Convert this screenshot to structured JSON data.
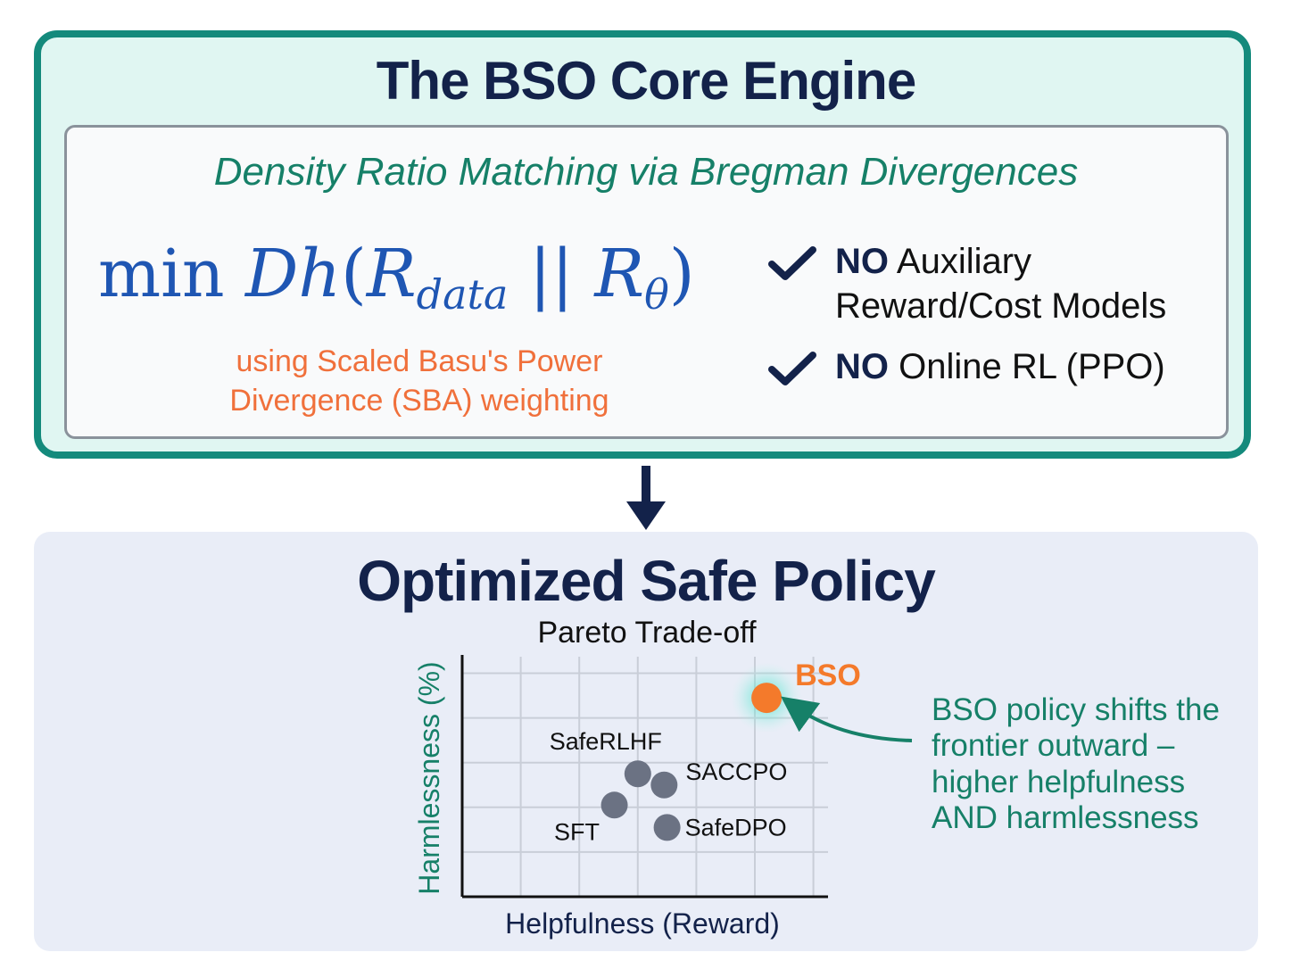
{
  "engine": {
    "title": "The BSO Core Engine",
    "subtitle": "Density Ratio Matching via Bregman Divergences",
    "formula": {
      "min": "min",
      "d": "D",
      "h": "h",
      "open": "(",
      "r1": "R",
      "r1_sub": "data",
      "sep": "||",
      "r2": "R",
      "r2_sub": "θ",
      "close": ")"
    },
    "formula_note": "using Scaled Basu's Power Divergence (SBA) weighting",
    "checks": [
      {
        "no": "NO",
        "text_line1": "Auxiliary",
        "text_line2": "Reward/Cost Models"
      },
      {
        "no": "NO",
        "text_line1": "Online RL (PPO)"
      }
    ],
    "colors": {
      "accent": "#148a7c",
      "formula": "#1f56b3",
      "note": "#f0703b",
      "title": "#13224a"
    }
  },
  "policy": {
    "title": "Optimized Safe Policy",
    "callout": "BSO policy shifts the frontier outward – higher helpfulness AND harmlessness"
  },
  "chart_data": {
    "type": "scatter",
    "title": "Pareto Trade-off",
    "xlabel": "Helpfulness (Reward)",
    "ylabel": "Harmlessness (%)",
    "xlim": [
      0,
      6.25
    ],
    "ylim": [
      0,
      5.25
    ],
    "grid": true,
    "points": [
      {
        "label": "BSO",
        "x": 5.2,
        "y": 4.45,
        "color": "#f47a2b",
        "highlight": true
      },
      {
        "label": "SafeRLHF",
        "x": 3.0,
        "y": 2.75,
        "color": "#6b7283"
      },
      {
        "label": "SACCPO",
        "x": 3.45,
        "y": 2.5,
        "color": "#6b7283"
      },
      {
        "label": "SFT",
        "x": 2.6,
        "y": 2.05,
        "color": "#6b7283"
      },
      {
        "label": "SafeDPO",
        "x": 3.5,
        "y": 1.55,
        "color": "#6b7283"
      }
    ]
  }
}
